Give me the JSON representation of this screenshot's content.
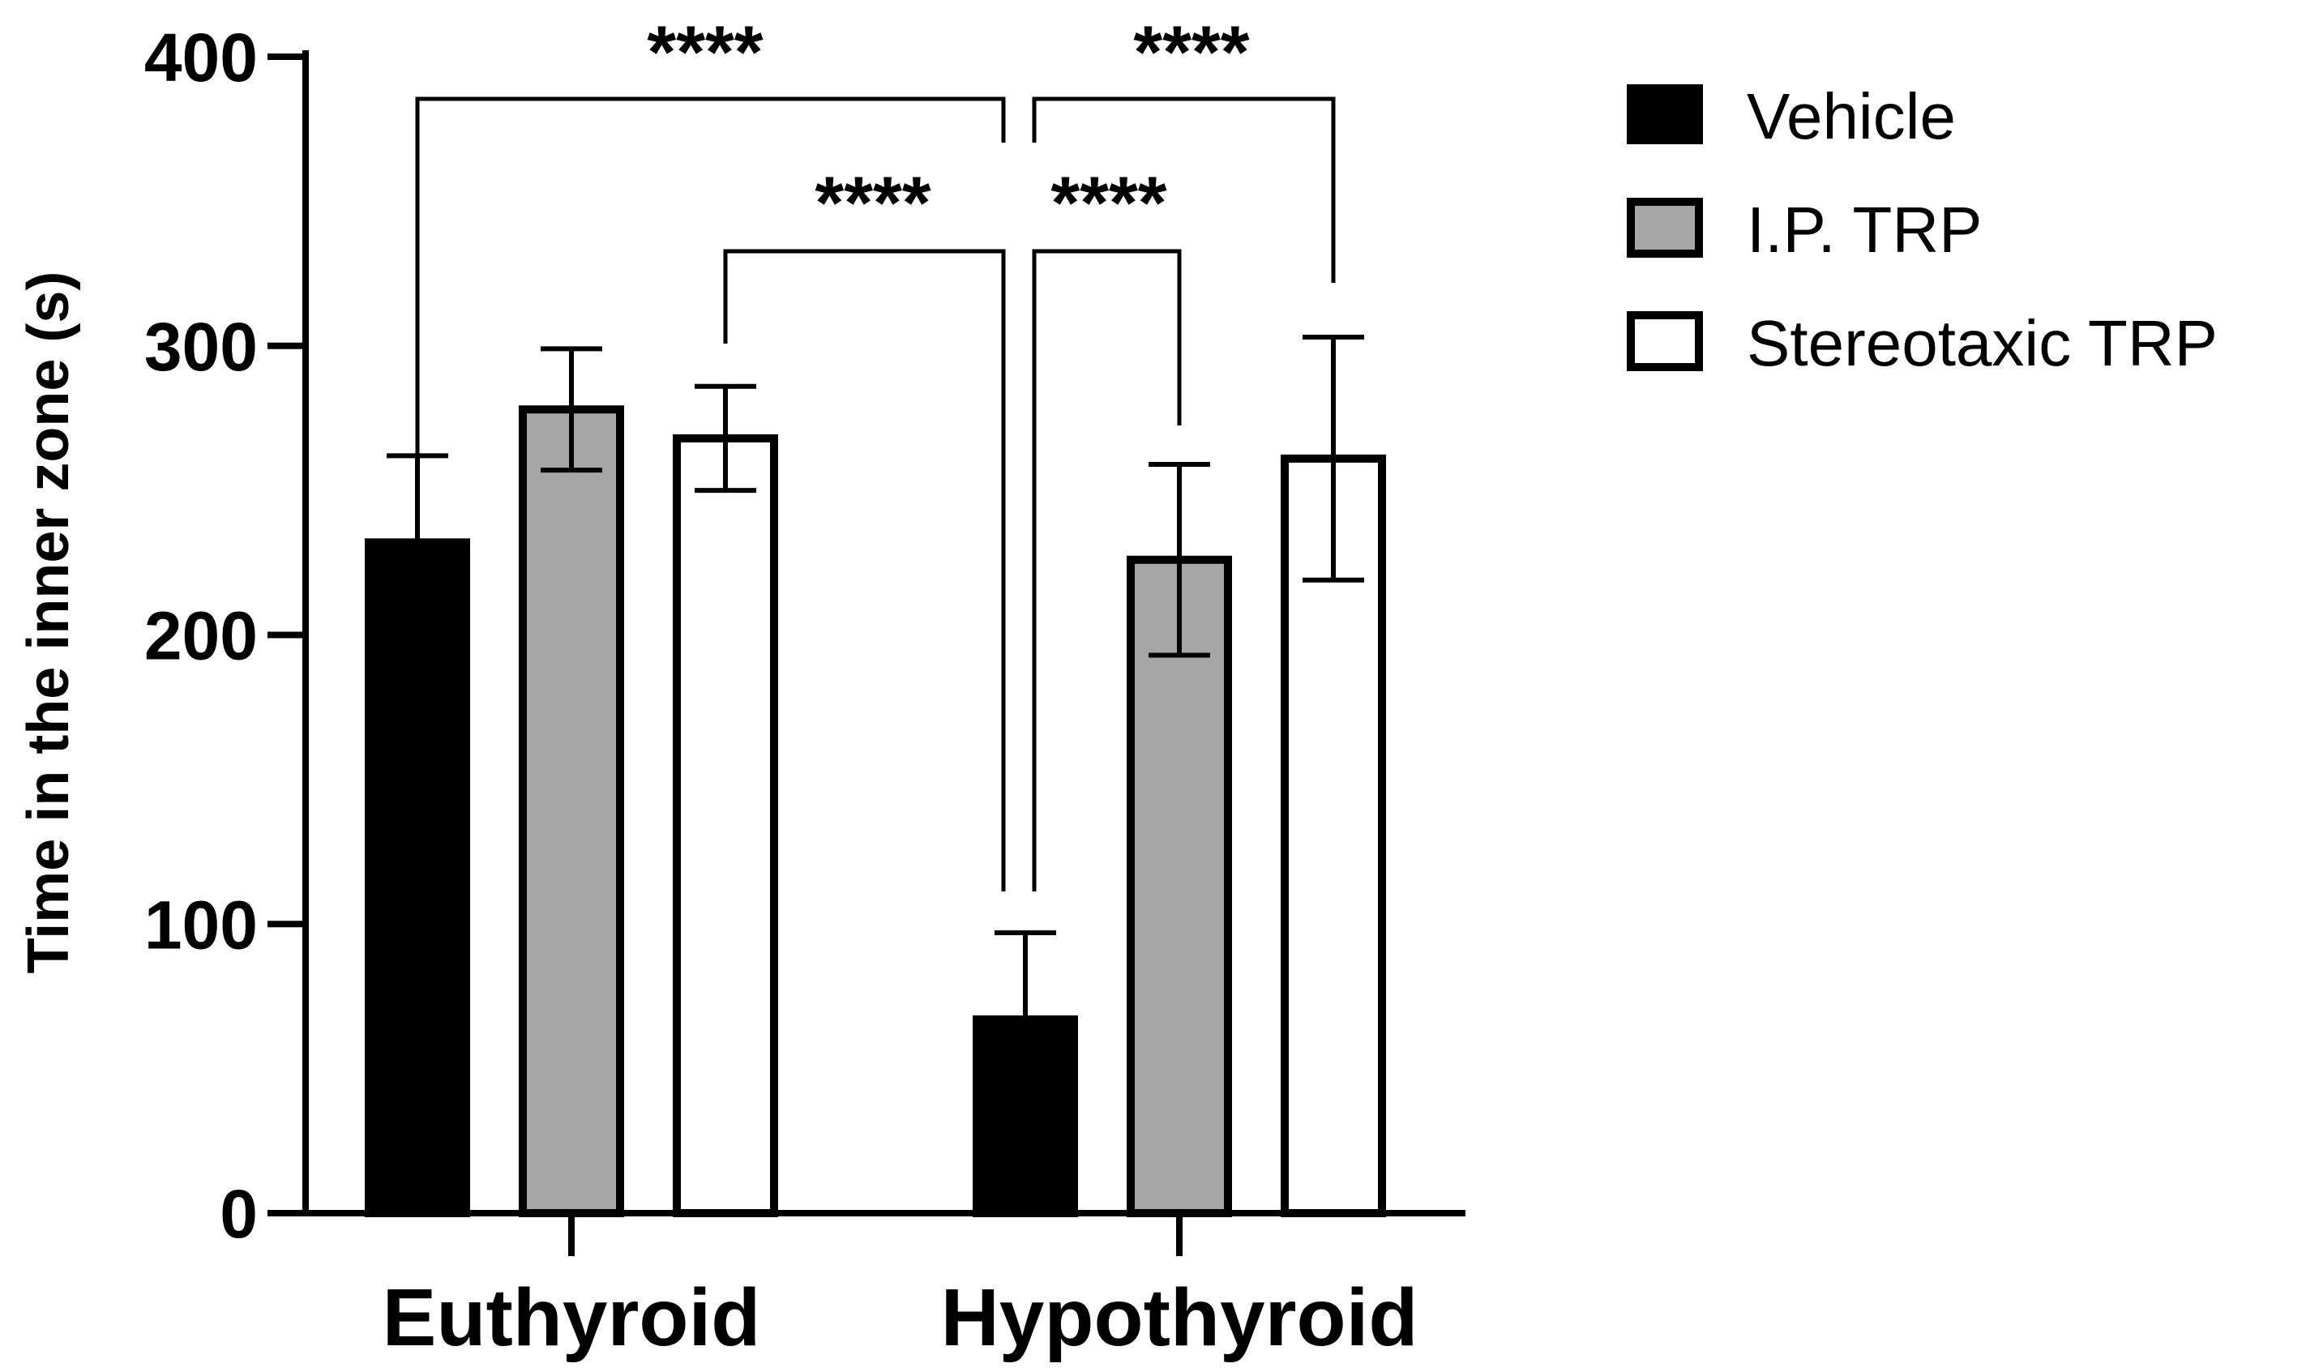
{
  "chart_data": {
    "type": "bar",
    "title": "",
    "xlabel": "",
    "ylabel": "Time in the inner zone (s)",
    "ylim": [
      0,
      400
    ],
    "yticks": [
      0,
      100,
      200,
      300,
      400
    ],
    "categories": [
      "Euthyroid",
      "Hypothyroid"
    ],
    "series": [
      {
        "name": "Vehicle",
        "color": "#000000",
        "values": [
          232,
          67
        ],
        "errors": [
          30,
          30
        ]
      },
      {
        "name": "I.P. TRP",
        "color": "#a6a6a6",
        "values": [
          278,
          226
        ],
        "errors": [
          21,
          33
        ]
      },
      {
        "name": "Stereotaxic TRP",
        "color": "#ffffff",
        "values": [
          268,
          261
        ],
        "errors": [
          18,
          42
        ]
      }
    ],
    "legend_position": "top-right",
    "significance": [
      {
        "from": "Euthyroid Vehicle",
        "to": "Hypothyroid Vehicle",
        "label": "****"
      },
      {
        "from": "Euthyroid Stereotaxic TRP",
        "to": "Hypothyroid Vehicle",
        "label": "****"
      },
      {
        "from": "Hypothyroid Vehicle",
        "to": "Hypothyroid I.P. TRP",
        "label": "****"
      },
      {
        "from": "Hypothyroid Vehicle",
        "to": "Hypothyroid Stereotaxic TRP",
        "label": "****"
      }
    ]
  }
}
